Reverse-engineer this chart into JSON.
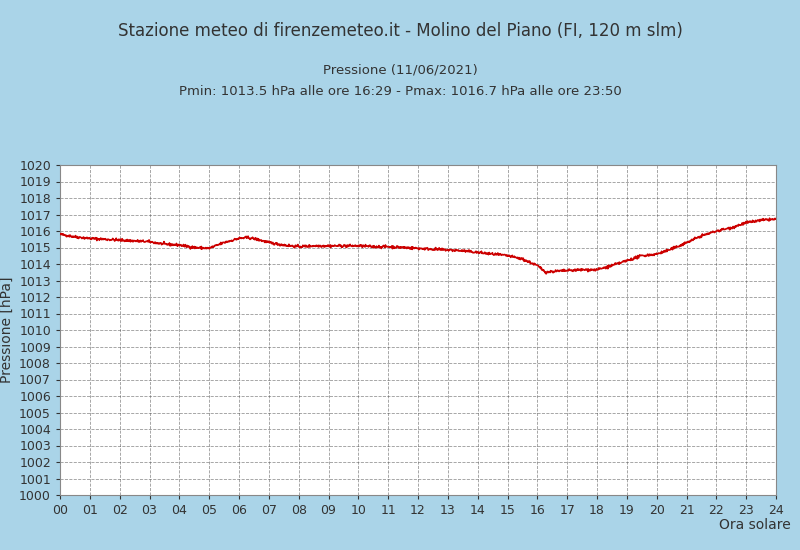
{
  "title": "Stazione meteo di firenzemeteo.it - Molino del Piano (FI, 120 m slm)",
  "subtitle_line1": "Pressione (11/06/2021)",
  "subtitle_line2": "Pmin: 1013.5 hPa alle ore 16:29 - Pmax: 1016.7 hPa alle ore 23:50",
  "xlabel": "Ora solare",
  "ylabel": "Pressione [hPa]",
  "ylim": [
    1000,
    1020
  ],
  "xlim": [
    0,
    24
  ],
  "yticks": [
    1000,
    1001,
    1002,
    1003,
    1004,
    1005,
    1006,
    1007,
    1008,
    1009,
    1010,
    1011,
    1012,
    1013,
    1014,
    1015,
    1016,
    1017,
    1018,
    1019,
    1020
  ],
  "xticks": [
    0,
    1,
    2,
    3,
    4,
    5,
    6,
    7,
    8,
    9,
    10,
    11,
    12,
    13,
    14,
    15,
    16,
    17,
    18,
    19,
    20,
    21,
    22,
    23,
    24
  ],
  "xtick_labels": [
    "00",
    "01",
    "02",
    "03",
    "04",
    "05",
    "06",
    "07",
    "08",
    "09",
    "10",
    "11",
    "12",
    "13",
    "14",
    "15",
    "16",
    "17",
    "18",
    "19",
    "20",
    "21",
    "22",
    "23",
    "24"
  ],
  "line_color": "#cc0000",
  "line_width": 1.2,
  "bg_color": "#aad4e8",
  "plot_bg_color": "#ffffff",
  "grid_color": "#333333",
  "title_color": "#333333",
  "title_fontsize": 12,
  "subtitle_fontsize": 9.5,
  "axis_label_fontsize": 10,
  "tick_fontsize": 9,
  "ctrl_t": [
    0,
    0.5,
    1,
    1.5,
    2,
    2.5,
    3,
    3.5,
    4,
    4.5,
    5,
    5.5,
    6,
    6.3,
    6.6,
    7,
    7.5,
    8,
    8.5,
    9,
    9.5,
    10,
    10.5,
    11,
    11.5,
    12,
    12.5,
    13,
    13.5,
    14,
    14.5,
    15,
    15.5,
    16,
    16.29,
    16.5,
    17,
    17.5,
    18,
    18.5,
    19,
    19.5,
    20,
    20.5,
    21,
    21.5,
    22,
    22.5,
    23,
    23.5,
    23.83,
    24
  ],
  "ctrl_p": [
    1015.8,
    1015.65,
    1015.55,
    1015.5,
    1015.45,
    1015.4,
    1015.35,
    1015.2,
    1015.15,
    1015.0,
    1014.95,
    1015.3,
    1015.55,
    1015.6,
    1015.5,
    1015.3,
    1015.15,
    1015.05,
    1015.1,
    1015.1,
    1015.1,
    1015.1,
    1015.05,
    1015.05,
    1015.0,
    1014.95,
    1014.9,
    1014.85,
    1014.8,
    1014.7,
    1014.6,
    1014.5,
    1014.3,
    1013.9,
    1013.5,
    1013.55,
    1013.6,
    1013.65,
    1013.65,
    1013.9,
    1014.2,
    1014.5,
    1014.6,
    1014.9,
    1015.3,
    1015.7,
    1016.0,
    1016.2,
    1016.5,
    1016.65,
    1016.7,
    1016.7
  ]
}
